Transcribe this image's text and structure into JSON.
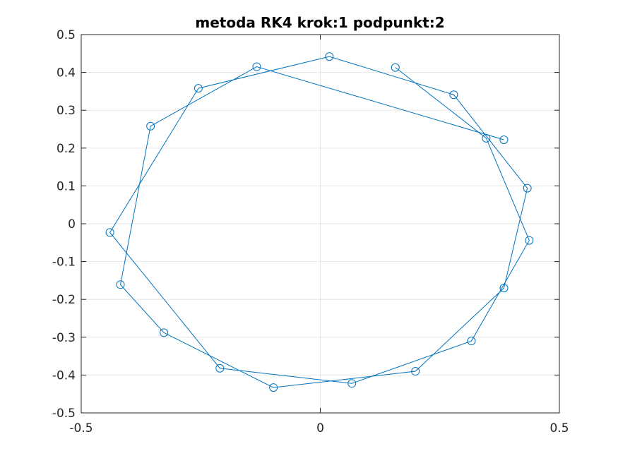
{
  "chart_data": {
    "type": "line",
    "title": "metoda RK4 krok:1 podpunkt:2",
    "xlabel": "",
    "ylabel": "",
    "xlim": [
      -0.5,
      0.5
    ],
    "ylim": [
      -0.5,
      0.5
    ],
    "xticks": [
      -0.5,
      0,
      0.5
    ],
    "yticks": [
      -0.5,
      -0.4,
      -0.3,
      -0.2,
      -0.1,
      0,
      0.1,
      0.2,
      0.3,
      0.4,
      0.5
    ],
    "grid": true,
    "marker": "circle",
    "series_color": "#0072bd",
    "axis_color": "#262626",
    "grid_color": "#e6e6e6",
    "series": [
      {
        "x": [
          0.384,
          -0.133,
          -0.355,
          -0.418,
          -0.327,
          -0.098,
          0.199,
          0.384,
          0.433,
          0.279,
          0.019,
          -0.255,
          -0.44,
          -0.21,
          0.066,
          0.316,
          0.437,
          0.347,
          0.157
        ],
        "y": [
          0.222,
          0.415,
          0.258,
          -0.161,
          -0.288,
          -0.433,
          -0.39,
          -0.17,
          0.094,
          0.341,
          0.442,
          0.358,
          -0.023,
          -0.382,
          -0.422,
          -0.31,
          -0.044,
          0.226,
          0.413
        ]
      }
    ]
  }
}
